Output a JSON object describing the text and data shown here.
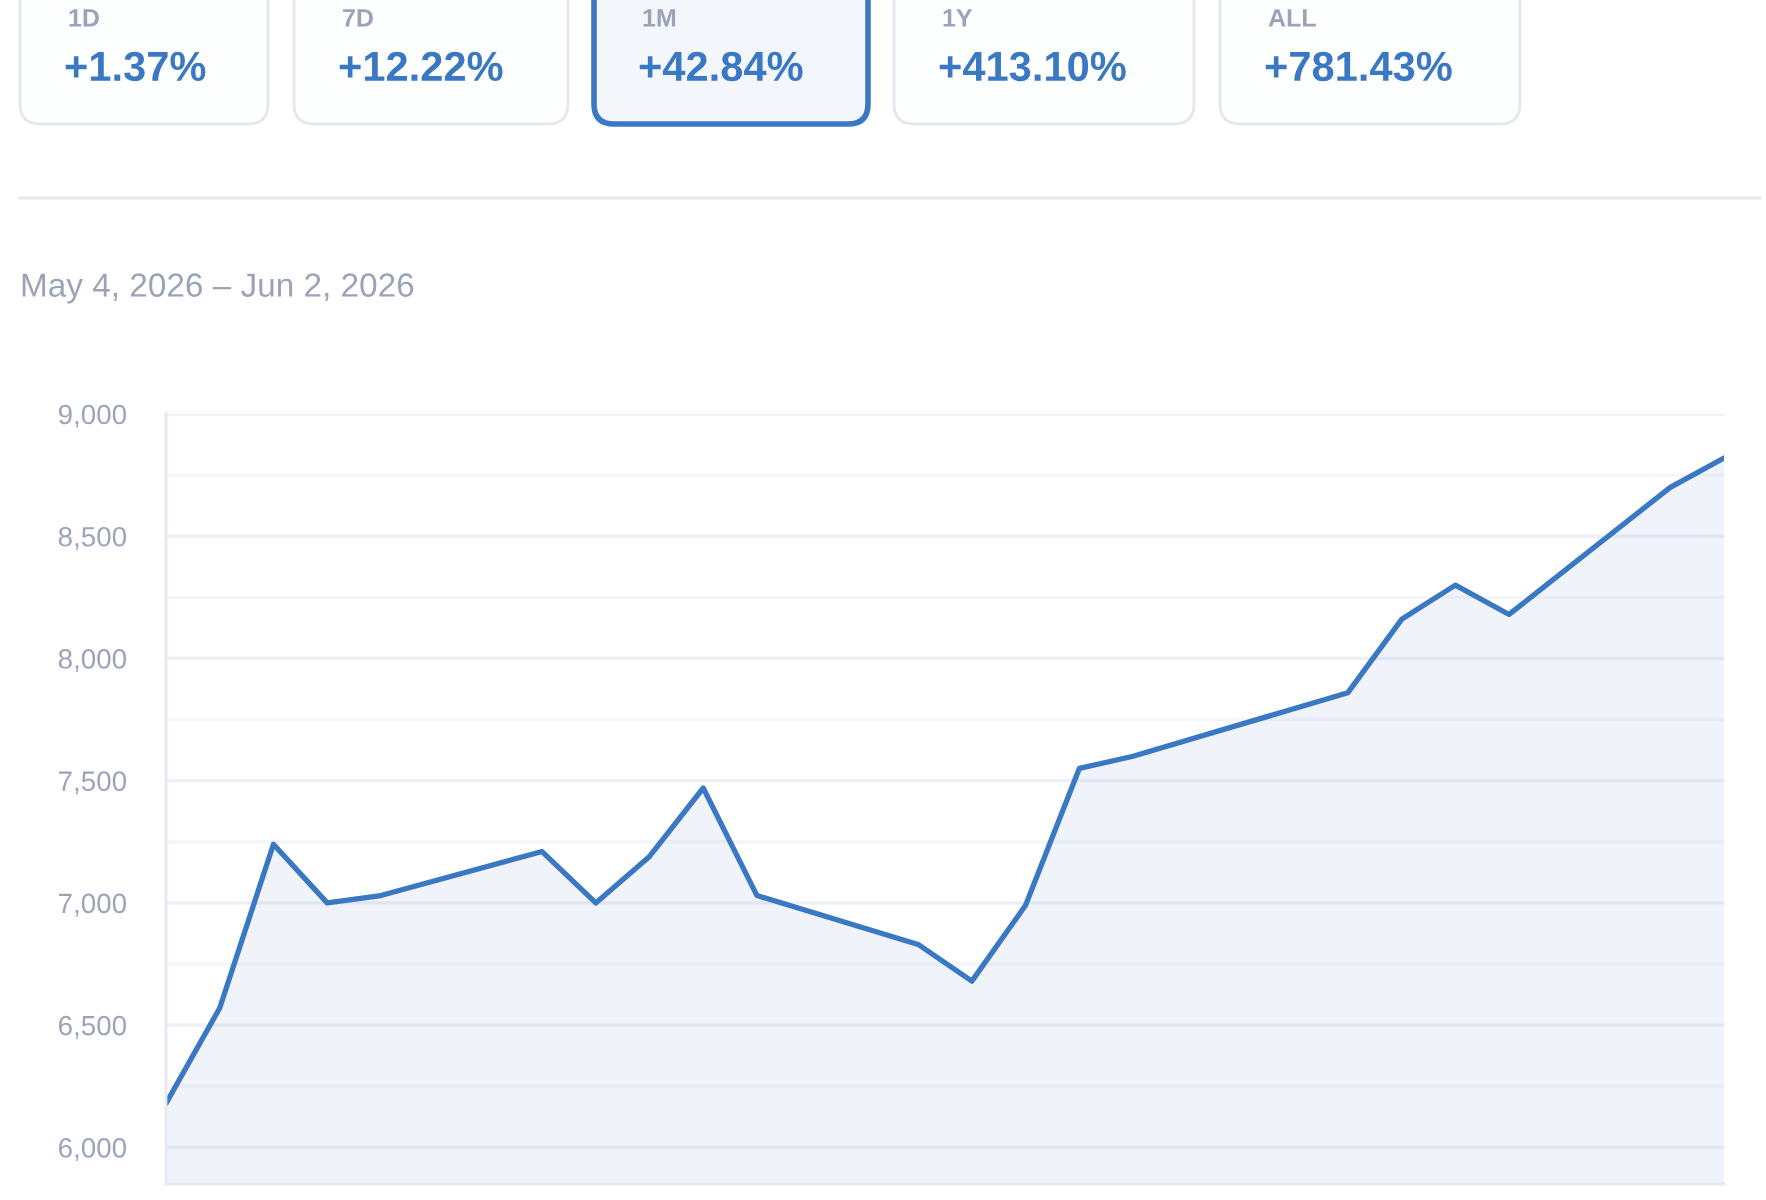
{
  "chart_data": [
    {
      "type": "other",
      "categories": [
        "1D",
        "7D",
        "1M",
        "1Y",
        "ALL"
      ],
      "value_labels": [
        "+1.37%",
        "+12.22%",
        "+42.84%",
        "+413.10%",
        "+781.43%"
      ],
      "colors": [
        "#e3e7f0",
        "#e3e7f0",
        "#3b78c3",
        "#e3e7f0",
        "#e3e7f0"
      ]
    },
    {
      "type": "area",
      "subtitle": "May 4, 2026 – Jun 2, 2026",
      "categories": [
        null,
        null,
        null,
        null,
        null,
        null,
        null,
        null,
        null,
        null,
        null,
        null,
        null,
        null,
        null,
        null,
        null,
        null,
        null,
        null,
        null,
        null,
        null,
        null,
        null,
        null,
        null,
        null,
        null,
        null
      ],
      "series": [
        {
          "color": "#3a78c4",
          "values": [
            6180,
            6570,
            7240,
            7000,
            7030,
            null,
            null,
            7210,
            7000,
            7190,
            7470,
            7030,
            null,
            null,
            6830,
            6680,
            6990,
            7550,
            7600,
            null,
            null,
            null,
            7860,
            8160,
            8300,
            8180,
            null,
            null,
            8700,
            8820
          ]
        }
      ],
      "ylim": [
        5850,
        9000
      ],
      "yticks": [
        {
          "value": 6000,
          "label": "6,000"
        },
        {
          "value": 6250,
          "label": null
        },
        {
          "value": 6500,
          "label": "6,500"
        },
        {
          "value": 6750,
          "label": null
        },
        {
          "value": 7000,
          "label": "7,000"
        },
        {
          "value": 7250,
          "label": null
        },
        {
          "value": 7500,
          "label": "7,500"
        },
        {
          "value": 7750,
          "label": null
        },
        {
          "value": 8000,
          "label": "8,000"
        },
        {
          "value": 8250,
          "label": null
        },
        {
          "value": 8500,
          "label": "8,500"
        },
        {
          "value": 8750,
          "label": null
        },
        {
          "value": 9000,
          "label": "9,000"
        }
      ],
      "grid": "y",
      "tick_labels": "y"
    }
  ]
}
